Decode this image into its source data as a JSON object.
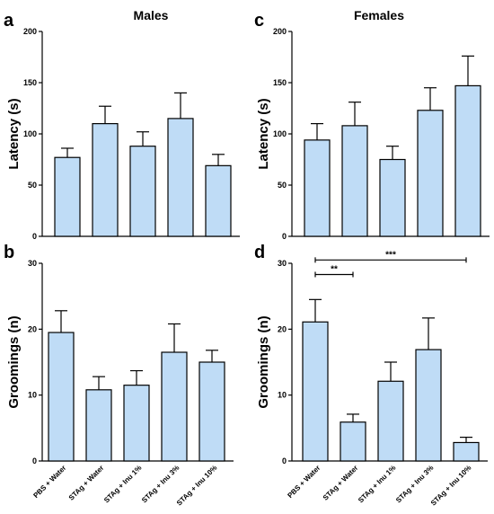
{
  "column_titles": [
    "Males",
    "Females"
  ],
  "chart_data": [
    {
      "panel": "a",
      "type": "bar",
      "title": "Males",
      "ylabel": "Latency (s)",
      "ylim": [
        0,
        200
      ],
      "yticks": [
        0,
        50,
        100,
        150,
        200
      ],
      "categories": [
        "PBS + Water",
        "STAg + Water",
        "STAg + Inu 1%",
        "STAg + Inu 3%",
        "STAg + Inu 10%"
      ],
      "values": [
        77,
        110,
        88,
        115,
        69
      ],
      "errors": [
        9,
        17,
        14,
        25,
        11
      ],
      "show_xticklabels": false,
      "significance": []
    },
    {
      "panel": "c",
      "type": "bar",
      "title": "Females",
      "ylabel": "Latency (s)",
      "ylim": [
        0,
        200
      ],
      "yticks": [
        0,
        50,
        100,
        150,
        200
      ],
      "categories": [
        "PBS + Water",
        "STAg + Water",
        "STAg + Inu 1%",
        "STAg + Inu 3%",
        "STAg + Inu 10%"
      ],
      "values": [
        94,
        108,
        75,
        123,
        147
      ],
      "errors": [
        16,
        23,
        13,
        22,
        29
      ],
      "show_xticklabels": false,
      "significance": []
    },
    {
      "panel": "b",
      "type": "bar",
      "title": "",
      "ylabel": "Groomings (n)",
      "ylim": [
        0,
        30
      ],
      "yticks": [
        0,
        10,
        20,
        30
      ],
      "categories": [
        "PBS + Water",
        "STAg + Water",
        "STAg + Inu 1%",
        "STAg + Inu 3%",
        "STAg + Inu 10%"
      ],
      "values": [
        19.5,
        10.8,
        11.5,
        16.5,
        15
      ],
      "errors": [
        3.3,
        2,
        2.2,
        4.3,
        1.8
      ],
      "show_xticklabels": true,
      "significance": []
    },
    {
      "panel": "d",
      "type": "bar",
      "title": "",
      "ylabel": "Groomings (n)",
      "ylim": [
        0,
        30
      ],
      "yticks": [
        0,
        10,
        20,
        30
      ],
      "categories": [
        "PBS + Water",
        "STAg + Water",
        "STAg + Inu 1%",
        "STAg + Inu 3%",
        "STAg + Inu 10%"
      ],
      "values": [
        21.1,
        5.9,
        12.1,
        16.9,
        2.8
      ],
      "errors": [
        3.4,
        1.2,
        2.9,
        4.8,
        0.8
      ],
      "show_xticklabels": true,
      "significance": [
        {
          "from": 0,
          "to": 1,
          "label": "**",
          "level": 28.3
        },
        {
          "from": 0,
          "to": 4,
          "label": "***",
          "level": 30.5
        }
      ]
    }
  ],
  "colors": {
    "bar_fill": "#bfdcf6",
    "stroke": "#000000"
  }
}
